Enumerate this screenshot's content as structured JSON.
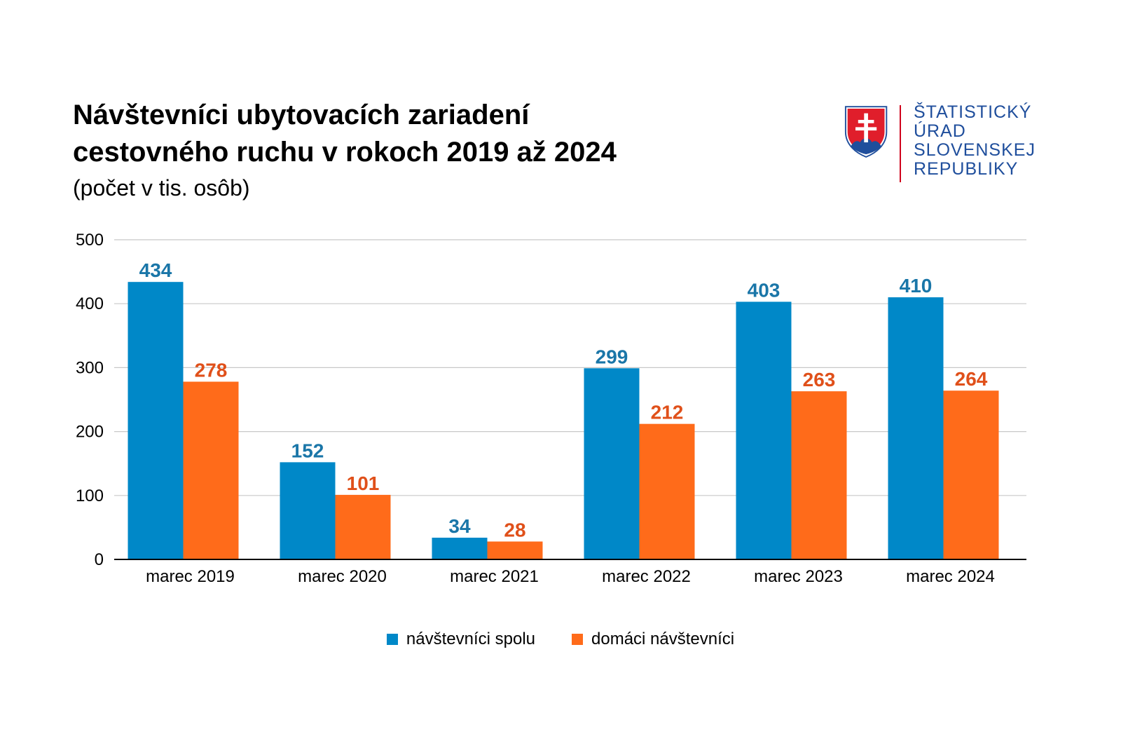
{
  "title": {
    "line1": "Návštevníci ubytovacích zariadení",
    "line2": "cestovného ruchu v rokoch 2019 až 2024",
    "subtitle": "(počet v tis. osôb)"
  },
  "logo": {
    "line1": "ŠTATISTICKÝ",
    "line2": "ÚRAD",
    "line3": "SLOVENSKEJ",
    "line4": "REPUBLIKY"
  },
  "colors": {
    "series1": "#0088c8",
    "series2": "#ff6b1a",
    "label1": "#1a76a8",
    "label2": "#e0501a",
    "grid": "#c8c8c8"
  },
  "chart_data": {
    "type": "bar",
    "title": "Návštevníci ubytovacích zariadení cestovného ruchu v rokoch 2019 až 2024",
    "subtitle": "(počet v tis. osôb)",
    "categories": [
      "marec 2019",
      "marec 2020",
      "marec 2021",
      "marec 2022",
      "marec 2023",
      "marec 2024"
    ],
    "series": [
      {
        "name": "návštevníci spolu",
        "values": [
          434,
          152,
          34,
          299,
          403,
          410
        ]
      },
      {
        "name": "domáci návštevníci",
        "values": [
          278,
          101,
          28,
          212,
          263,
          264
        ]
      }
    ],
    "ylim": [
      0,
      500
    ],
    "yticks": [
      0,
      100,
      200,
      300,
      400,
      500
    ],
    "xlabel": "",
    "ylabel": "",
    "grid": true,
    "legend": "bottom"
  }
}
